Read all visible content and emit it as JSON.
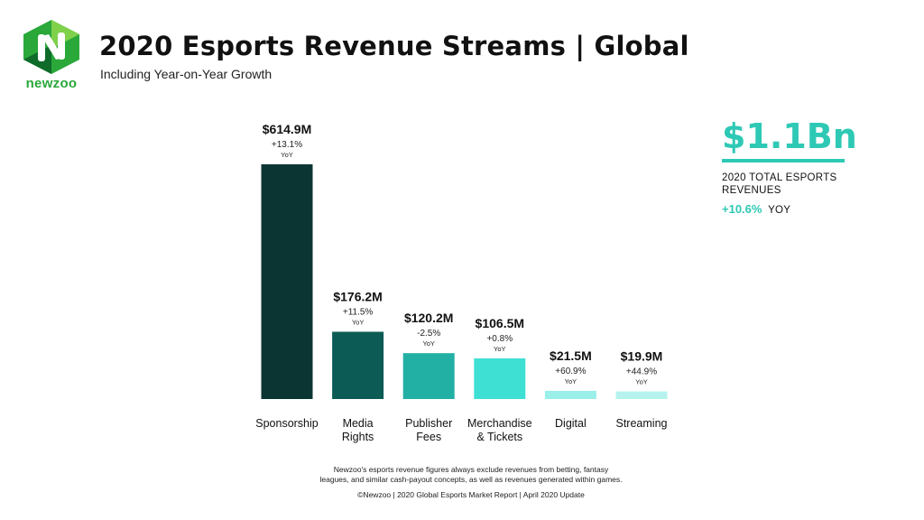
{
  "logo": {
    "text": "newzoo",
    "icon": "newzoo-logo-icon",
    "colors": [
      "#2aa83a",
      "#7fd14a",
      "#0f6b2a"
    ]
  },
  "header": {
    "title": "2020 Esports Revenue Streams | Global",
    "subtitle": "Including Year-on-Year Growth"
  },
  "total": {
    "value": "$1.1Bn",
    "label": "2020 TOTAL ESPORTS REVENUES",
    "growth": "+10.6%",
    "growth_suffix": "YOY",
    "accent": "#2ec9b5"
  },
  "chart_data": {
    "type": "bar",
    "categories": [
      [
        "Sponsorship"
      ],
      [
        "Media",
        "Rights"
      ],
      [
        "Publisher",
        "Fees"
      ],
      [
        "Merchandise",
        "& Tickets"
      ],
      [
        "Digital"
      ],
      [
        "Streaming"
      ]
    ],
    "values": [
      614.9,
      176.2,
      120.2,
      106.5,
      21.5,
      19.9
    ],
    "value_labels": [
      "$614.9M",
      "$176.2M",
      "$120.2M",
      "$106.5M",
      "$21.5M",
      "$19.9M"
    ],
    "growth_labels": [
      "+13.1%",
      "+11.5%",
      "-2.5%",
      "+0.8%",
      "+60.9%",
      "+44.9%"
    ],
    "growth_suffix": "YoY",
    "colors": [
      "#0b3533",
      "#0d5b55",
      "#22b0a4",
      "#3ee0d3",
      "#9aefe9",
      "#b6f3ef"
    ],
    "unit": "$M",
    "ylim": [
      0,
      614.9
    ],
    "grid": false
  },
  "footer": {
    "note_lines": [
      "Newzoo's esports revenue figures always exclude revenues from betting, fantasy",
      "leagues, and similar cash-payout concepts, as well as revenues generated within games."
    ],
    "source": "©Newzoo | 2020 Global Esports Market Report | April 2020 Update"
  }
}
